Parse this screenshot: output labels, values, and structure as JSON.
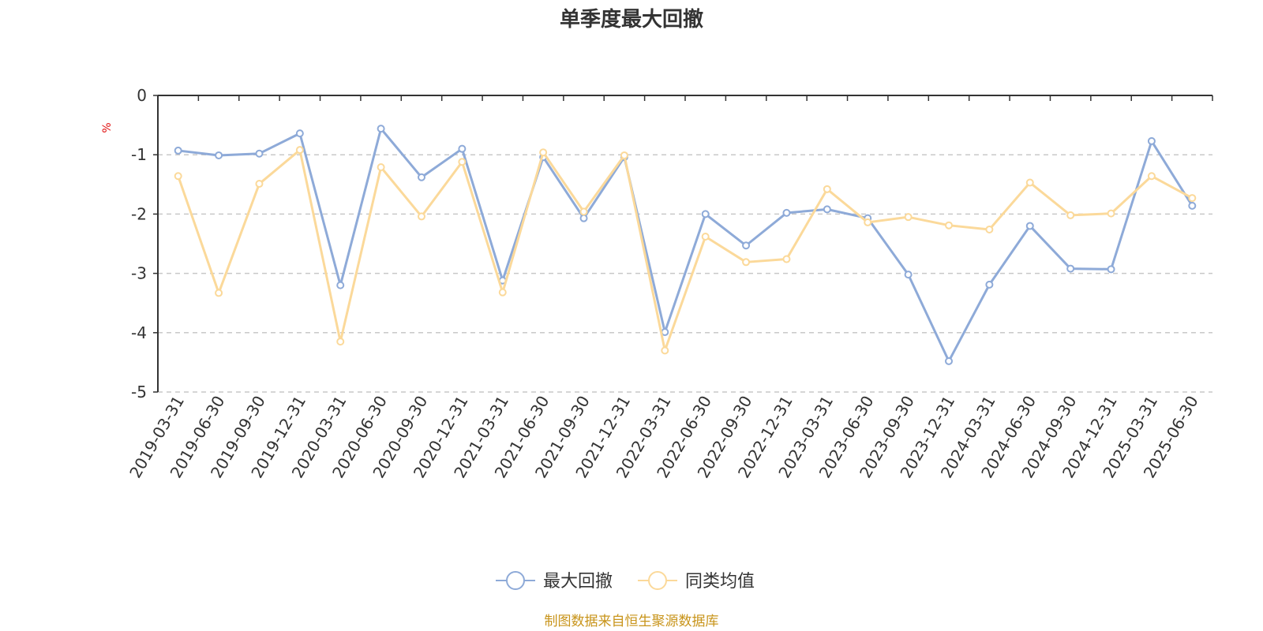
{
  "chart_data": {
    "type": "line",
    "title": "单季度最大回撤",
    "ylabel": "%",
    "ylim": [
      -5,
      0
    ],
    "yticks": [
      0,
      -1,
      -2,
      -3,
      -4,
      -5
    ],
    "grid": "horizontal-dashed",
    "legend_position": "bottom",
    "categories": [
      "2019-03-31",
      "2019-06-30",
      "2019-09-30",
      "2019-12-31",
      "2020-03-31",
      "2020-06-30",
      "2020-09-30",
      "2020-12-31",
      "2021-03-31",
      "2021-06-30",
      "2021-09-30",
      "2021-12-31",
      "2022-03-31",
      "2022-06-30",
      "2022-09-30",
      "2022-12-31",
      "2023-03-31",
      "2023-06-30",
      "2023-09-30",
      "2023-12-31",
      "2024-03-31",
      "2024-06-30",
      "2024-09-30",
      "2024-12-31",
      "2025-03-31",
      "2025-06-30"
    ],
    "series": [
      {
        "name": "最大回撤",
        "color": "#8eaad8",
        "values": [
          -0.93,
          -1.01,
          -0.98,
          -0.64,
          -3.2,
          -0.56,
          -1.38,
          -0.9,
          -3.12,
          -1.04,
          -2.07,
          -1.04,
          -3.99,
          -2.0,
          -2.53,
          -1.98,
          -1.92,
          -2.07,
          -3.02,
          -4.48,
          -3.19,
          -2.2,
          -2.92,
          -2.93,
          -0.77,
          -1.86
        ]
      },
      {
        "name": "同类均值",
        "color": "#fbd99a",
        "values": [
          -1.36,
          -3.33,
          -1.49,
          -0.92,
          -4.15,
          -1.21,
          -2.04,
          -1.12,
          -3.32,
          -0.96,
          -1.96,
          -1.01,
          -4.3,
          -2.38,
          -2.81,
          -2.76,
          -1.58,
          -2.14,
          -2.05,
          -2.19,
          -2.26,
          -1.47,
          -2.02,
          -1.99,
          -1.36,
          -1.73
        ]
      }
    ],
    "source_note": "制图数据来自恒生聚源数据库"
  }
}
